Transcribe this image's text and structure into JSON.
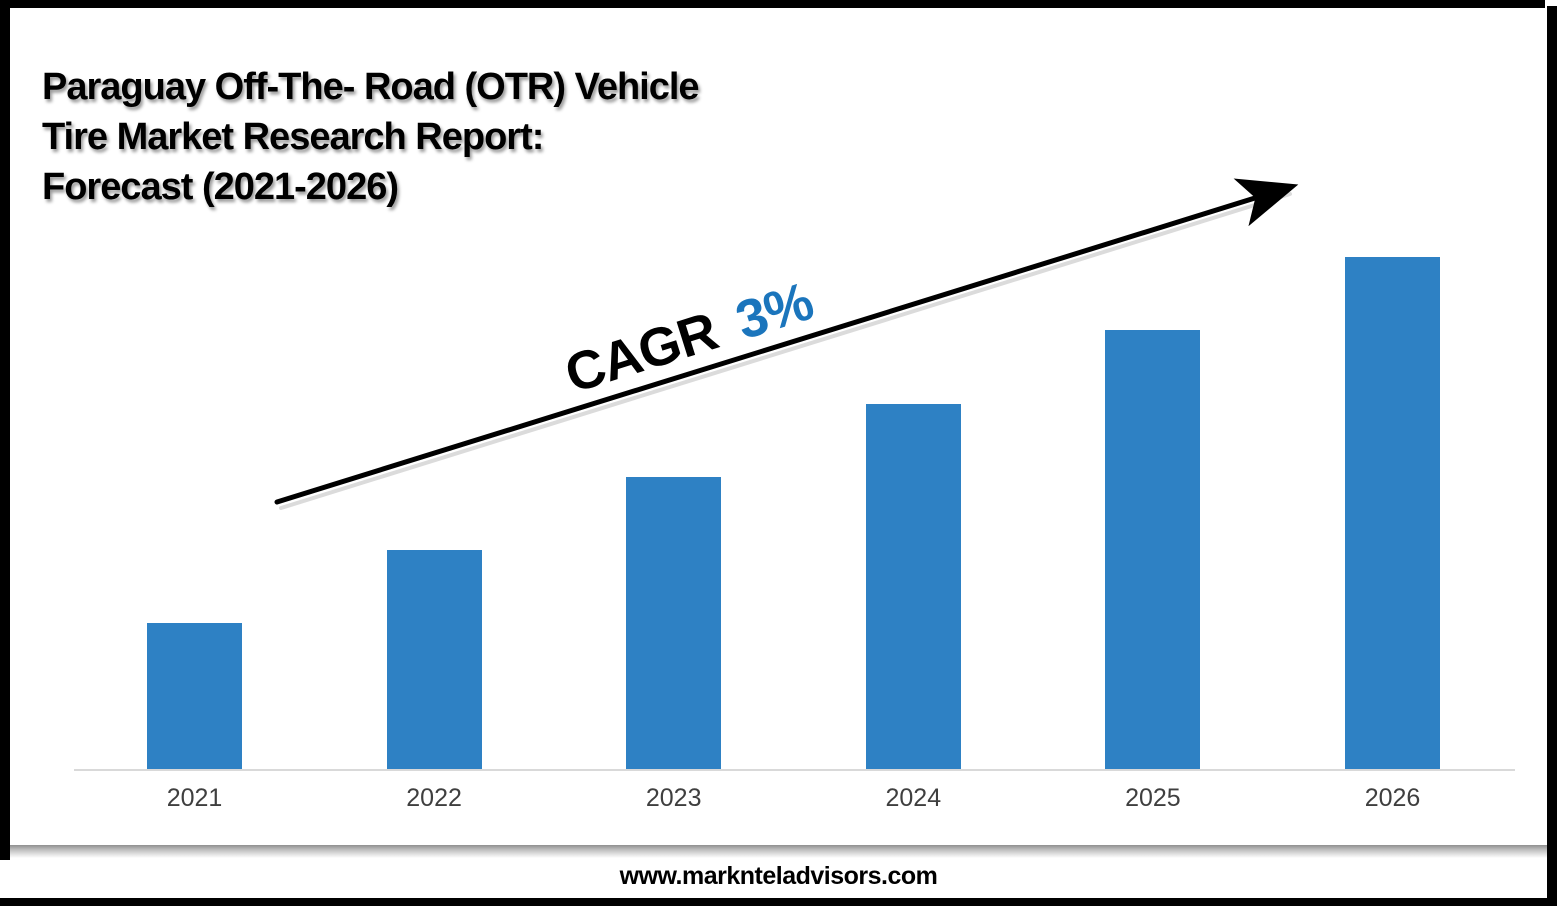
{
  "title": {
    "text": "Paraguay Off-The- Road (OTR) Vehicle\nTire Market Research Report:\nForecast (2021-2026)"
  },
  "cagr": {
    "label": "CAGR",
    "value": "3%",
    "label_color": "#000000",
    "value_color": "#1B75BC"
  },
  "footer": {
    "website": "www.marknteladvisors.com"
  },
  "colors": {
    "bar": "#2E81C4",
    "axis_line": "#D9D9D9",
    "tick_label": "#3F3F3F",
    "frame": "#000000",
    "arrow": "#000000"
  },
  "chart_data": {
    "type": "bar",
    "title": "Paraguay Off-The- Road (OTR) Vehicle Tire Market Research Report: Forecast (2021-2026)",
    "categories": [
      "2021",
      "2022",
      "2023",
      "2024",
      "2025",
      "2026"
    ],
    "values": [
      2,
      3,
      4,
      5,
      6,
      7
    ],
    "xlabel": "",
    "ylabel": "",
    "ylim": [
      0,
      8
    ],
    "grid": false,
    "legend_position": "none",
    "annotation": "CAGR 3%"
  }
}
